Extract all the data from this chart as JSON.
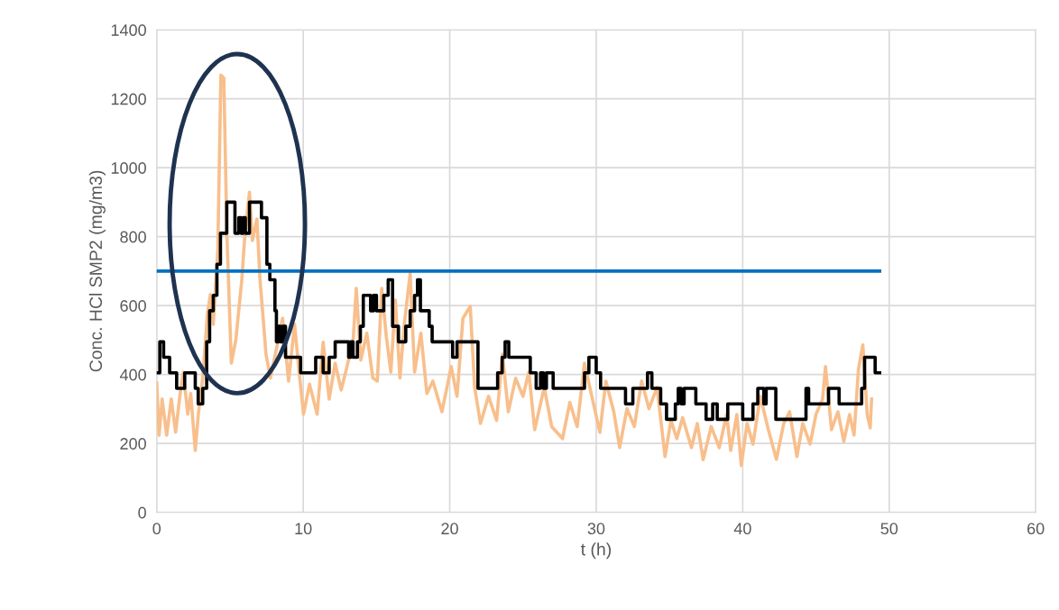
{
  "chart_data": {
    "type": "line",
    "xlabel": "t (h)",
    "ylabel": "Conc. HCl SMP2 (mg/m3)",
    "xlim": [
      0,
      60
    ],
    "xticks": [
      0,
      10,
      20,
      30,
      40,
      50,
      60
    ],
    "ylim": [
      0,
      1400
    ],
    "yticks": [
      0,
      200,
      400,
      600,
      800,
      1000,
      1200,
      1400
    ],
    "grid": true,
    "marker": "none",
    "line_style": "solid",
    "ref_lines": [
      {
        "axis": "y",
        "value": 700,
        "label": null,
        "color": "#0070c0",
        "line_style": "solid"
      }
    ],
    "series": [
      {
        "color": "#f8bf8c",
        "x": [
          0,
          0.16,
          0.37,
          0.68,
          0.99,
          1.29,
          1.6,
          1.81,
          2.12,
          2.32,
          2.63,
          2.84,
          3.14,
          3.45,
          3.66,
          3.86,
          4.17,
          4.38,
          4.58,
          4.79,
          5.09,
          5.4,
          5.81,
          6.02,
          6.33,
          6.53,
          6.84,
          7.05,
          7.46,
          7.76,
          8.18,
          8.59,
          9.0,
          9.41,
          9.72,
          10.02,
          10.43,
          10.95,
          11.36,
          11.77,
          12.18,
          12.59,
          13.0,
          13.41,
          13.62,
          13.93,
          14.34,
          14.75,
          15.06,
          15.36,
          15.67,
          15.98,
          16.29,
          16.6,
          16.9,
          17.3,
          17.6,
          18.03,
          18.44,
          18.85,
          19.47,
          20.1,
          20.5,
          20.9,
          21.4,
          21.7,
          22.1,
          22.65,
          23.2,
          23.6,
          24.0,
          24.5,
          25.0,
          25.4,
          25.8,
          26.45,
          26.96,
          27.7,
          28.2,
          28.7,
          29.2,
          29.7,
          30.25,
          30.66,
          31.2,
          31.6,
          32.1,
          32.6,
          33.1,
          33.6,
          34.15,
          34.7,
          35.1,
          35.5,
          35.9,
          36.5,
          36.9,
          37.3,
          37.85,
          38.4,
          38.9,
          39.18,
          39.6,
          39.9,
          40.3,
          40.7,
          41.2,
          41.75,
          42.3,
          42.8,
          43.2,
          43.7,
          44.1,
          44.6,
          45.0,
          45.45,
          45.65,
          46.06,
          46.5,
          46.9,
          47.3,
          47.6,
          47.9,
          48.2,
          48.5,
          48.7,
          48.8
        ],
        "values": [
          376,
          224,
          329,
          224,
          329,
          233,
          345,
          407,
          285,
          345,
          180,
          285,
          390,
          572,
          632,
          546,
          762,
          1269,
          1260,
          807,
          433,
          501,
          676,
          807,
          929,
          789,
          851,
          676,
          459,
          390,
          476,
          563,
          381,
          546,
          407,
          285,
          372,
          285,
          494,
          329,
          433,
          355,
          425,
          501,
          650,
          442,
          520,
          390,
          381,
          650,
          511,
          407,
          616,
          390,
          546,
          694,
          407,
          520,
          345,
          381,
          292,
          423,
          337,
          563,
          598,
          363,
          258,
          337,
          267,
          459,
          292,
          389,
          337,
          407,
          240,
          363,
          249,
          214,
          319,
          249,
          433,
          337,
          232,
          381,
          292,
          188,
          301,
          249,
          381,
          301,
          363,
          162,
          267,
          214,
          275,
          188,
          258,
          153,
          249,
          188,
          284,
          180,
          284,
          136,
          258,
          198,
          337,
          240,
          154,
          258,
          292,
          162,
          258,
          198,
          284,
          329,
          423,
          240,
          292,
          206,
          284,
          224,
          415,
          486,
          284,
          245,
          329
        ]
      },
      {
        "type": "step",
        "color": "#000000",
        "x": [
          0,
          0.21,
          0.47,
          0.88,
          1.36,
          1.91,
          2.63,
          2.83,
          3.14,
          3.41,
          3.61,
          3.86,
          4.11,
          4.35,
          4.78,
          5.34,
          5.6,
          5.75,
          5.9,
          6.05,
          6.33,
          7.15,
          7.52,
          7.72,
          8.07,
          8.17,
          8.3,
          8.45,
          8.6,
          8.79,
          9.82,
          10.85,
          11.36,
          11.77,
          12.18,
          13.1,
          13.25,
          13.4,
          13.7,
          13.9,
          14.1,
          14.6,
          14.8,
          15.0,
          15.5,
          15.8,
          16.1,
          16.5,
          17.0,
          17.3,
          17.6,
          17.8,
          18.0,
          18.6,
          18.8,
          20.2,
          20.5,
          21.93,
          23.27,
          23.58,
          23.78,
          24.03,
          25.5,
          25.9,
          26.2,
          26.4,
          26.6,
          27.06,
          29.2,
          29.5,
          30.0,
          30.3,
          32.0,
          32.5,
          33.5,
          33.8,
          34.4,
          34.8,
          35.4,
          35.6,
          35.8,
          36.0,
          36.8,
          37.5,
          37.95,
          38.26,
          38.98,
          40.0,
          40.7,
          41.03,
          41.44,
          41.6,
          42.26,
          44.32,
          44.5,
          45.86,
          46.58,
          48.12,
          48.32,
          49.04,
          49.35
        ],
        "values": [
          405,
          495,
          450,
          405,
          360,
          405,
          360,
          315,
          360,
          495,
          585,
          630,
          720,
          810,
          900,
          810,
          855,
          810,
          855,
          810,
          900,
          855,
          720,
          675,
          585,
          495,
          540,
          495,
          540,
          450,
          405,
          450,
          405,
          450,
          495,
          450,
          495,
          450,
          495,
          540,
          630,
          585,
          630,
          585,
          630,
          675,
          540,
          495,
          540,
          585,
          630,
          675,
          585,
          540,
          495,
          450,
          495,
          360,
          405,
          450,
          495,
          450,
          405,
          360,
          405,
          360,
          405,
          360,
          405,
          450,
          405,
          360,
          315,
          360,
          405,
          360,
          315,
          270,
          315,
          360,
          315,
          360,
          315,
          270,
          315,
          270,
          315,
          270,
          315,
          360,
          315,
          360,
          270,
          360,
          315,
          360,
          315,
          360,
          450,
          405,
          405
        ]
      }
    ]
  }
}
